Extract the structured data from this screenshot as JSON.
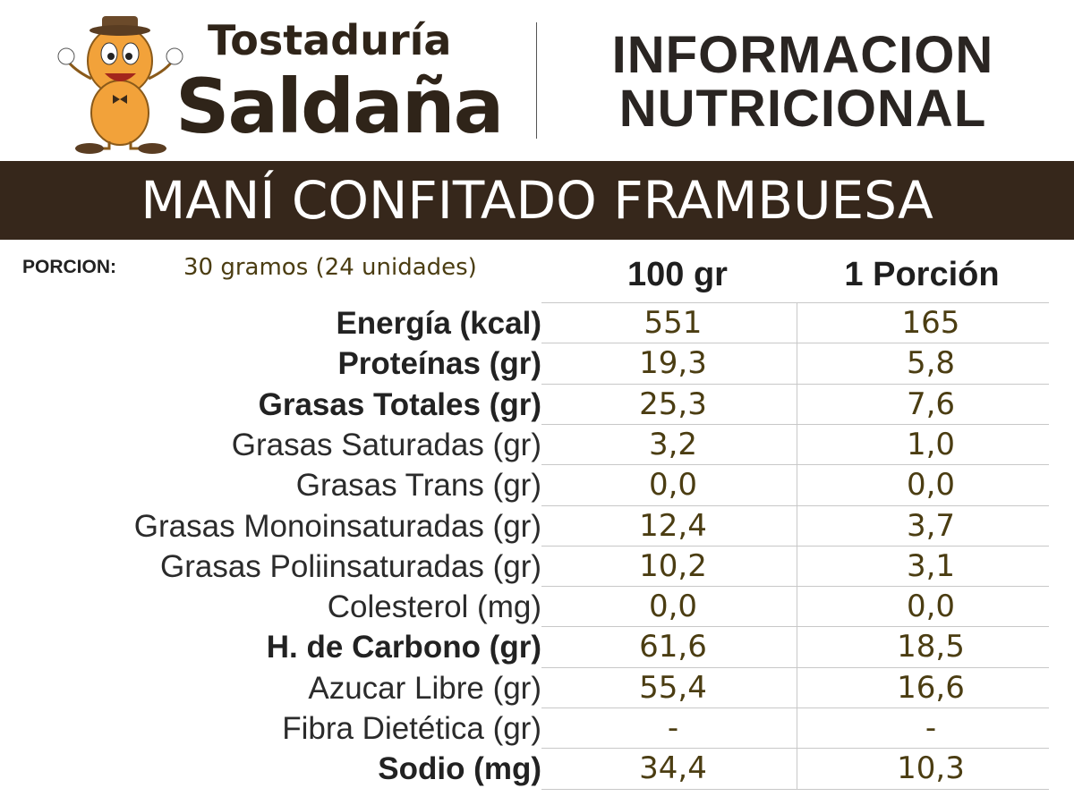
{
  "header": {
    "brand_top": "Tostaduría",
    "brand_bottom": "Saldaña",
    "title_line1": "INFORMACION",
    "title_line2": "NUTRICIONAL"
  },
  "product": "MANÍ CONFITADO FRAMBUESA",
  "portion": {
    "label": "PORCION:",
    "value": "30 gramos (24 unidades)"
  },
  "table": {
    "columns": [
      "100 gr",
      "1 Porción"
    ],
    "rows": [
      {
        "label": "Energía (kcal)",
        "bold": true,
        "values": [
          "551",
          "165"
        ]
      },
      {
        "label": "Proteínas (gr)",
        "bold": true,
        "values": [
          "19,3",
          "5,8"
        ]
      },
      {
        "label": "Grasas Totales (gr)",
        "bold": true,
        "values": [
          "25,3",
          "7,6"
        ]
      },
      {
        "label": "Grasas Saturadas (gr)",
        "bold": false,
        "values": [
          "3,2",
          "1,0"
        ]
      },
      {
        "label": "Grasas Trans (gr)",
        "bold": false,
        "values": [
          "0,0",
          "0,0"
        ]
      },
      {
        "label": "Grasas Monoinsaturadas (gr)",
        "bold": false,
        "values": [
          "12,4",
          "3,7"
        ]
      },
      {
        "label": "Grasas Poliinsaturadas (gr)",
        "bold": false,
        "values": [
          "10,2",
          "3,1"
        ]
      },
      {
        "label": "Colesterol (mg)",
        "bold": false,
        "values": [
          "0,0",
          "0,0"
        ]
      },
      {
        "label": "H. de Carbono (gr)",
        "bold": true,
        "values": [
          "61,6",
          "18,5"
        ]
      },
      {
        "label": "Azucar Libre (gr)",
        "bold": false,
        "values": [
          "55,4",
          "16,6"
        ]
      },
      {
        "label": "Fibra Dietética (gr)",
        "bold": false,
        "values": [
          "-",
          "-"
        ]
      },
      {
        "label": "Sodio (mg)",
        "bold": true,
        "values": [
          "34,4",
          "10,3"
        ]
      }
    ]
  }
}
